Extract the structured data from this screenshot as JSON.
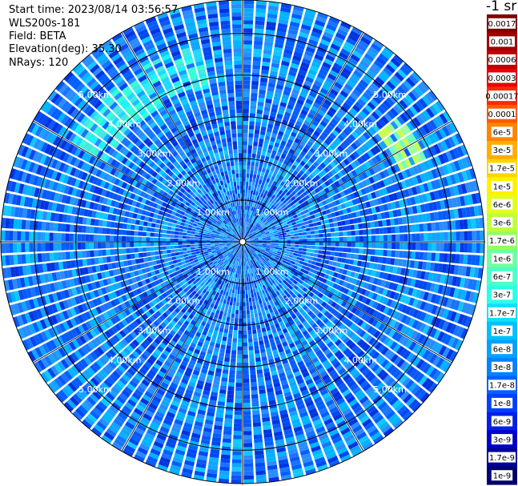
{
  "info": {
    "start_time": "Start time: 2023/08/14 03:56:57",
    "device": "WLS200s-181",
    "field": "Field: BETA",
    "elevation": "Elevation(deg): 35.30",
    "nrays": "NRays: 120"
  },
  "colorbar": {
    "title": "-1 sr",
    "labels": [
      "0.0017",
      "0.001",
      "0.0006",
      "0.0003",
      "0.00017",
      "0.0001",
      "6e-5",
      "3e-5",
      "1.7e-5",
      "1e-5",
      "6e-6",
      "3e-6",
      "1.7e-6",
      "1e-6",
      "6e-7",
      "3e-7",
      "1.7e-7",
      "1e-7",
      "6e-8",
      "3e-8",
      "1.7e-8",
      "1e-8",
      "6e-9",
      "3e-9",
      "1.7e-9",
      "1e-9"
    ],
    "colors": [
      "#800000",
      "#a00000",
      "#c00000",
      "#e80000",
      "#ff2a00",
      "#ff5a00",
      "#ff8400",
      "#ffae00",
      "#ffd400",
      "#fff200",
      "#e2ff1a",
      "#bfff3a",
      "#96ff60",
      "#6effa0",
      "#4affc8",
      "#2affe8",
      "#10e0ff",
      "#00c0ff",
      "#00a2ff",
      "#0082ff",
      "#0062ff",
      "#0040ff",
      "#0020e8",
      "#0000cc",
      "#00009c",
      "#000070"
    ]
  },
  "chart_data": {
    "type": "heatmap",
    "projection": "polar (plan position indicator)",
    "n_rays": 120,
    "range_max_km": 5.8,
    "range_rings_km": [
      1.0,
      2.0,
      3.0,
      4.0,
      5.0
    ],
    "ring_labels": [
      "1.00km",
      "2.00km",
      "3.00km",
      "4.00km",
      "5.00km"
    ],
    "sector_dividers_deg": [
      0,
      30,
      60,
      90,
      120,
      150,
      180,
      210,
      240,
      270,
      300,
      330
    ],
    "dominant_values": "mostly 6e-9 to 1e-8 (blue)",
    "enhanced_regions": [
      {
        "azimuth_deg": [
          300,
          345
        ],
        "range_km": [
          3.8,
          4.8
        ],
        "value": "1e-7 to 3e-7"
      },
      {
        "azimuth_deg": [
          50,
          65
        ],
        "range_km": [
          4.2,
          4.8
        ],
        "value": "1.7e-6 to 6e-6"
      }
    ],
    "colorscale": "logarithmic"
  }
}
